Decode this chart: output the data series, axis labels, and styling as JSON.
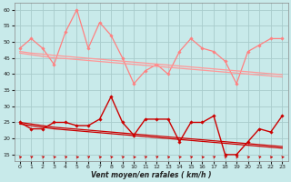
{
  "xlabel": "Vent moyen/en rafales ( km/h )",
  "bg_color": "#c8eaea",
  "grid_color": "#a8cccc",
  "xlim": [
    -0.5,
    23.5
  ],
  "ylim": [
    13,
    62
  ],
  "yticks": [
    15,
    20,
    25,
    30,
    35,
    40,
    45,
    50,
    55,
    60
  ],
  "xticks": [
    0,
    1,
    2,
    3,
    4,
    5,
    6,
    7,
    8,
    9,
    10,
    11,
    12,
    13,
    14,
    15,
    16,
    17,
    18,
    19,
    20,
    21,
    22,
    23
  ],
  "series_rafales_spiky": {
    "color": "#ff8080",
    "marker": "D",
    "ms": 1.8,
    "lw": 0.9,
    "y": [
      48,
      51,
      48,
      43,
      53,
      60,
      48,
      56,
      52,
      45,
      37,
      41,
      43,
      40,
      47,
      51,
      48,
      47,
      44,
      37,
      47,
      49,
      51,
      51
    ]
  },
  "series_rafales_trend1": {
    "color": "#ff9898",
    "marker": null,
    "ms": 0,
    "lw": 0.9,
    "y": [
      47.0,
      46.5,
      46.2,
      45.8,
      45.5,
      45.2,
      44.9,
      44.6,
      44.3,
      44.0,
      43.7,
      43.4,
      43.1,
      42.8,
      42.5,
      42.2,
      41.9,
      41.6,
      41.3,
      41.0,
      40.7,
      40.4,
      40.1,
      39.8
    ]
  },
  "series_rafales_trend2": {
    "color": "#ff9898",
    "marker": null,
    "ms": 0,
    "lw": 0.9,
    "y": [
      46.5,
      46.0,
      45.5,
      45.0,
      44.8,
      44.5,
      44.2,
      43.9,
      43.6,
      43.3,
      43.0,
      42.7,
      42.4,
      42.1,
      41.8,
      41.5,
      41.2,
      40.9,
      40.6,
      40.3,
      40.0,
      39.7,
      39.4,
      39.1
    ]
  },
  "series_moyen_spiky": {
    "color": "#cc0000",
    "marker": "D",
    "ms": 1.8,
    "lw": 1.0,
    "y": [
      25,
      23,
      23,
      25,
      25,
      24,
      24,
      26,
      33,
      25,
      21,
      26,
      26,
      26,
      19,
      25,
      25,
      27,
      15,
      15,
      19,
      23,
      22,
      27
    ]
  },
  "series_moyen_trend1": {
    "color": "#cc0000",
    "marker": null,
    "ms": 0,
    "lw": 0.9,
    "y": [
      25.0,
      24.5,
      24.0,
      23.5,
      23.2,
      22.9,
      22.6,
      22.3,
      22.0,
      21.7,
      21.4,
      21.1,
      20.8,
      20.5,
      20.2,
      19.9,
      19.6,
      19.3,
      19.0,
      18.7,
      18.4,
      18.1,
      17.8,
      17.5
    ]
  },
  "series_moyen_trend2": {
    "color": "#cc0000",
    "marker": null,
    "ms": 0,
    "lw": 0.9,
    "y": [
      24.5,
      24.0,
      23.5,
      23.0,
      22.7,
      22.4,
      22.1,
      21.8,
      21.5,
      21.2,
      20.9,
      20.6,
      20.3,
      20.0,
      19.7,
      19.4,
      19.1,
      18.8,
      18.5,
      18.2,
      17.9,
      17.6,
      17.3,
      17.0
    ]
  },
  "arrow_color": "#cc0000",
  "arrow_angles": [
    10,
    30,
    25,
    15,
    20,
    5,
    30,
    10,
    15,
    20,
    5,
    25,
    30,
    10,
    15,
    20,
    5,
    30,
    25,
    10,
    15,
    20,
    5,
    10
  ]
}
